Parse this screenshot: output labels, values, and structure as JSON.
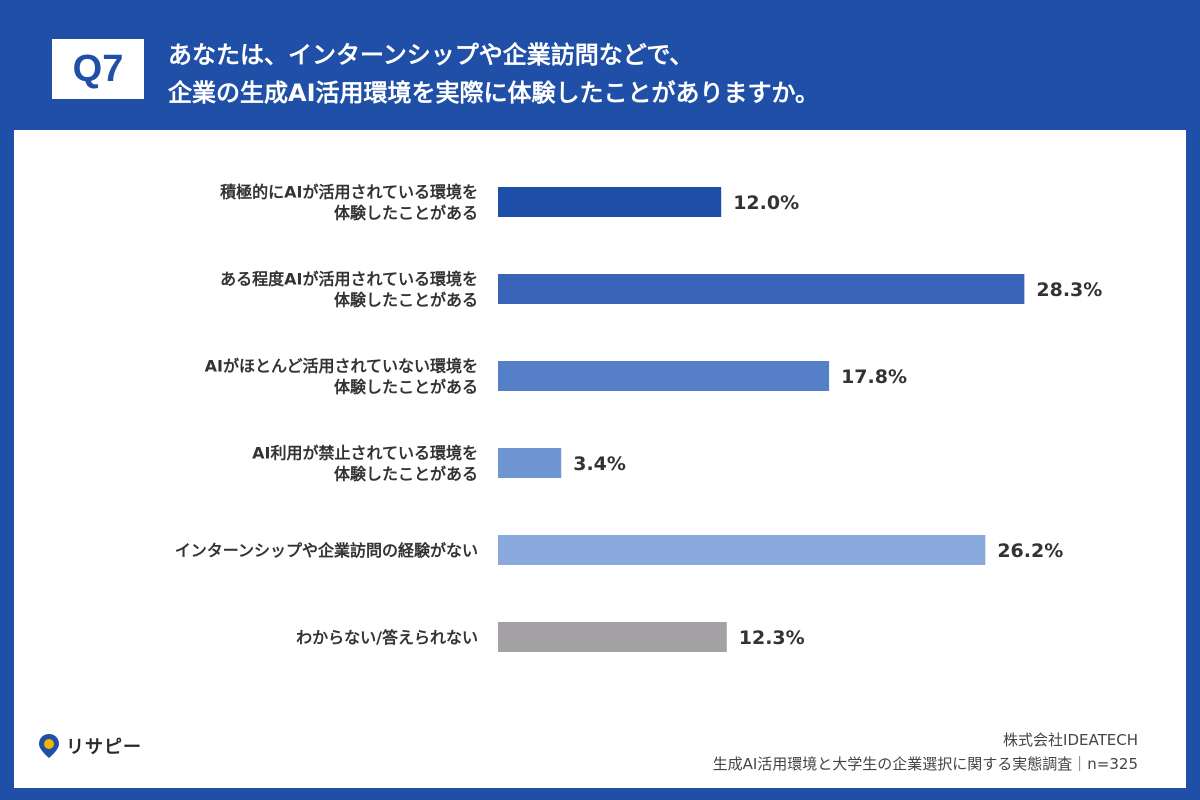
{
  "header": {
    "badge": "Q7",
    "title_line1": "あなたは、インターンシップや企業訪問などで、",
    "title_line2": "企業の生成AI活用環境を実際に体験したことがありますか。"
  },
  "chart_data": {
    "type": "bar",
    "orientation": "horizontal",
    "categories": [
      [
        "積極的にAIが活用されている環境を",
        "体験したことがある"
      ],
      [
        "ある程度AIが活用されている環境を",
        "体験したことがある"
      ],
      [
        "AIがほとんど活用されていない環境を",
        "体験したことがある"
      ],
      [
        "AI利用が禁止されている環境を",
        "体験したことがある"
      ],
      [
        "インターンシップや企業訪問の経験がない"
      ],
      [
        "わからない/答えられない"
      ]
    ],
    "values": [
      12.0,
      28.3,
      17.8,
      3.4,
      26.2,
      12.3
    ],
    "value_labels": [
      "12.0%",
      "28.3%",
      "17.8%",
      "3.4%",
      "26.2%",
      "12.3%"
    ],
    "colors": [
      "#1e4fa8",
      "#3a64b8",
      "#5580c8",
      "#6f95d3",
      "#8aa9dc",
      "#a3a1a3"
    ],
    "unit": "%",
    "xlim": [
      0,
      30
    ]
  },
  "footer": {
    "logo_text": "リサピー",
    "company": "株式会社IDEATECH",
    "survey": "生成AI活用環境と大学生の企業選択に関する実態調査｜n=325"
  },
  "theme": {
    "brand_blue": "#1f4fa6",
    "text": "#333333"
  }
}
